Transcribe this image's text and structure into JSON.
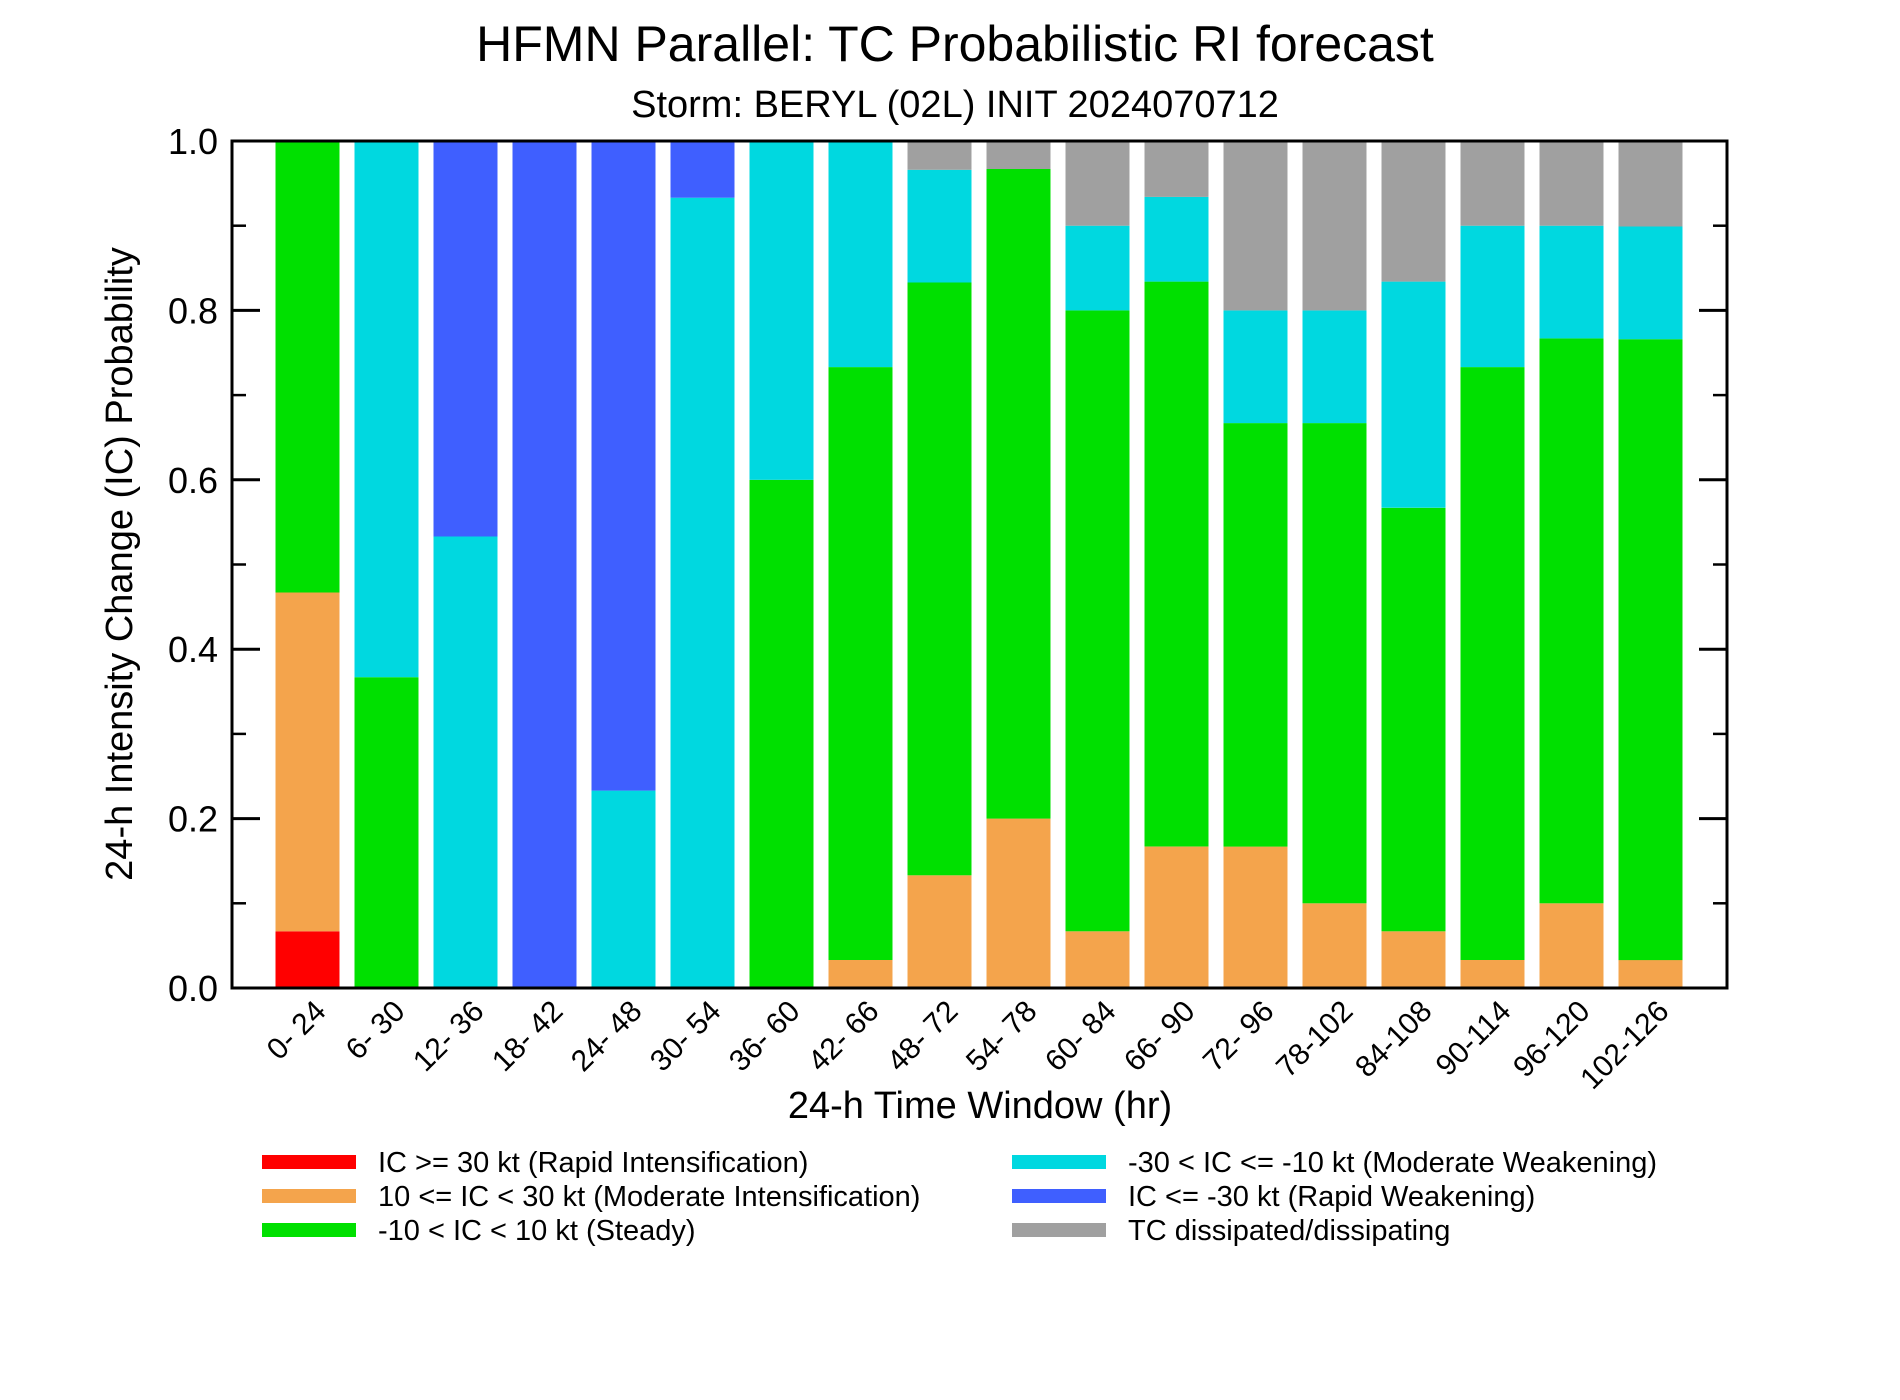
{
  "chart_data": {
    "type": "bar",
    "stacked": true,
    "title": "HFMN Parallel: TC Probabilistic RI forecast",
    "subtitle": "Storm: BERYL (02L) INIT 2024070712",
    "xlabel": "24-h Time Window (hr)",
    "ylabel": "24-h Intensity Change (IC) Probability",
    "ylim": [
      0,
      1
    ],
    "yticks": [
      "0.0",
      "0.2",
      "0.4",
      "0.6",
      "0.8",
      "1.0"
    ],
    "grid": false,
    "legend_position": "bottom",
    "categories": [
      "0- 24",
      "6- 30",
      "12- 36",
      "18- 42",
      "24- 48",
      "30- 54",
      "36- 60",
      "42- 66",
      "48- 72",
      "54- 78",
      "60- 84",
      "66- 90",
      "72- 96",
      "78-102",
      "84-108",
      "90-114",
      "96-120",
      "102-126"
    ],
    "series": [
      {
        "name": "IC >= 30 kt (Rapid Intensification)",
        "color": "#ff0000",
        "values": [
          0.067,
          0,
          0,
          0,
          0,
          0,
          0,
          0,
          0,
          0,
          0,
          0,
          0,
          0,
          0,
          0,
          0,
          0
        ]
      },
      {
        "name": "10 <= IC < 30 kt (Moderate Intensification)",
        "color": "#f4a44c",
        "values": [
          0.4,
          0,
          0,
          0,
          0,
          0,
          0,
          0.033,
          0.133,
          0.2,
          0.067,
          0.167,
          0.167,
          0.1,
          0.067,
          0.033,
          0.1,
          0.033
        ]
      },
      {
        "name": "-10 < IC < 10 kt (Steady)",
        "color": "#00e000",
        "values": [
          0.533,
          0.367,
          0,
          0,
          0,
          0,
          0.6,
          0.7,
          0.7,
          0.767,
          0.733,
          0.667,
          0.5,
          0.567,
          0.5,
          0.7,
          0.667,
          0.733
        ]
      },
      {
        "name": "-30 < IC <= -10 kt (Moderate Weakening)",
        "color": "#00d8e0",
        "values": [
          0,
          0.633,
          0.533,
          0,
          0.233,
          0.933,
          0.4,
          0.267,
          0.133,
          0,
          0.1,
          0.1,
          0.133,
          0.133,
          0.267,
          0.167,
          0.133,
          0.133
        ]
      },
      {
        "name": "IC <= -30 kt (Rapid Weakening)",
        "color": "#3f5fff",
        "values": [
          0,
          0,
          0.467,
          1.0,
          0.767,
          0.067,
          0,
          0,
          0,
          0,
          0,
          0,
          0,
          0,
          0,
          0,
          0,
          0
        ]
      },
      {
        "name": "TC dissipated/dissipating",
        "color": "#a0a0a0",
        "values": [
          0,
          0,
          0,
          0,
          0,
          0,
          0,
          0,
          0.033,
          0.033,
          0.1,
          0.067,
          0.2,
          0.2,
          0.167,
          0.1,
          0.1,
          0.1
        ]
      }
    ]
  }
}
